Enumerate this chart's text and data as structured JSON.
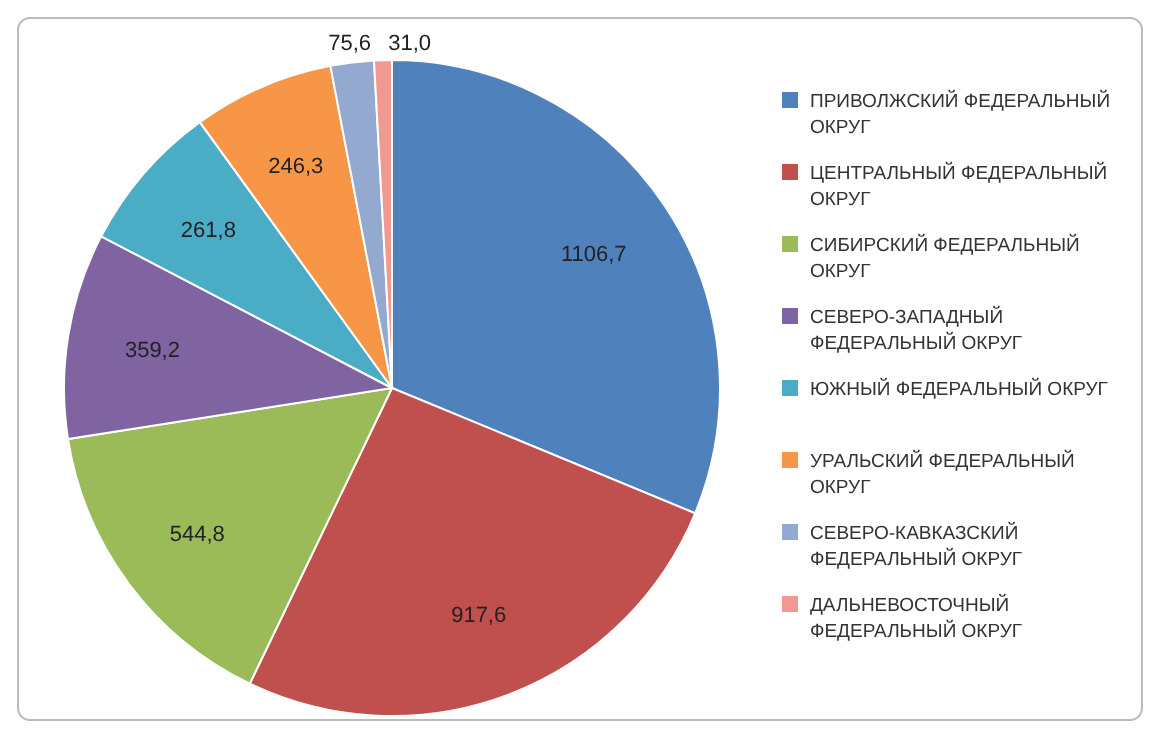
{
  "chart_data": {
    "type": "pie",
    "categories": [
      "ПРИВОЛЖСКИЙ ФЕДЕРАЛЬНЫЙ ОКРУГ",
      "ЦЕНТРАЛЬНЫЙ ФЕДЕРАЛЬНЫЙ ОКРУГ",
      "СИБИРСКИЙ ФЕДЕРАЛЬНЫЙ ОКРУГ",
      "СЕВЕРО-ЗАПАДНЫЙ ФЕДЕРАЛЬНЫЙ ОКРУГ",
      "ЮЖНЫЙ ФЕДЕРАЛЬНЫЙ ОКРУГ",
      "УРАЛЬСКИЙ ФЕДЕРАЛЬНЫЙ ОКРУГ",
      "СЕВЕРО-КАВКАЗСКИЙ ФЕДЕРАЛЬНЫЙ ОКРУГ",
      "ДАЛЬНЕВОСТОЧНЫЙ ФЕДЕРАЛЬНЫЙ ОКРУГ"
    ],
    "values": [
      1106.7,
      917.6,
      544.8,
      359.2,
      261.8,
      246.3,
      75.6,
      31.0
    ],
    "value_labels": [
      "1106,7",
      "917,6",
      "544,8",
      "359,2",
      "261,8",
      "246,3",
      "75,6",
      "31,0"
    ],
    "colors": [
      "#4f81bd",
      "#c0504d",
      "#9bbb59",
      "#8064a2",
      "#4bacc6",
      "#f79646",
      "#93a9cf",
      "#f19990"
    ],
    "legend": "right"
  }
}
